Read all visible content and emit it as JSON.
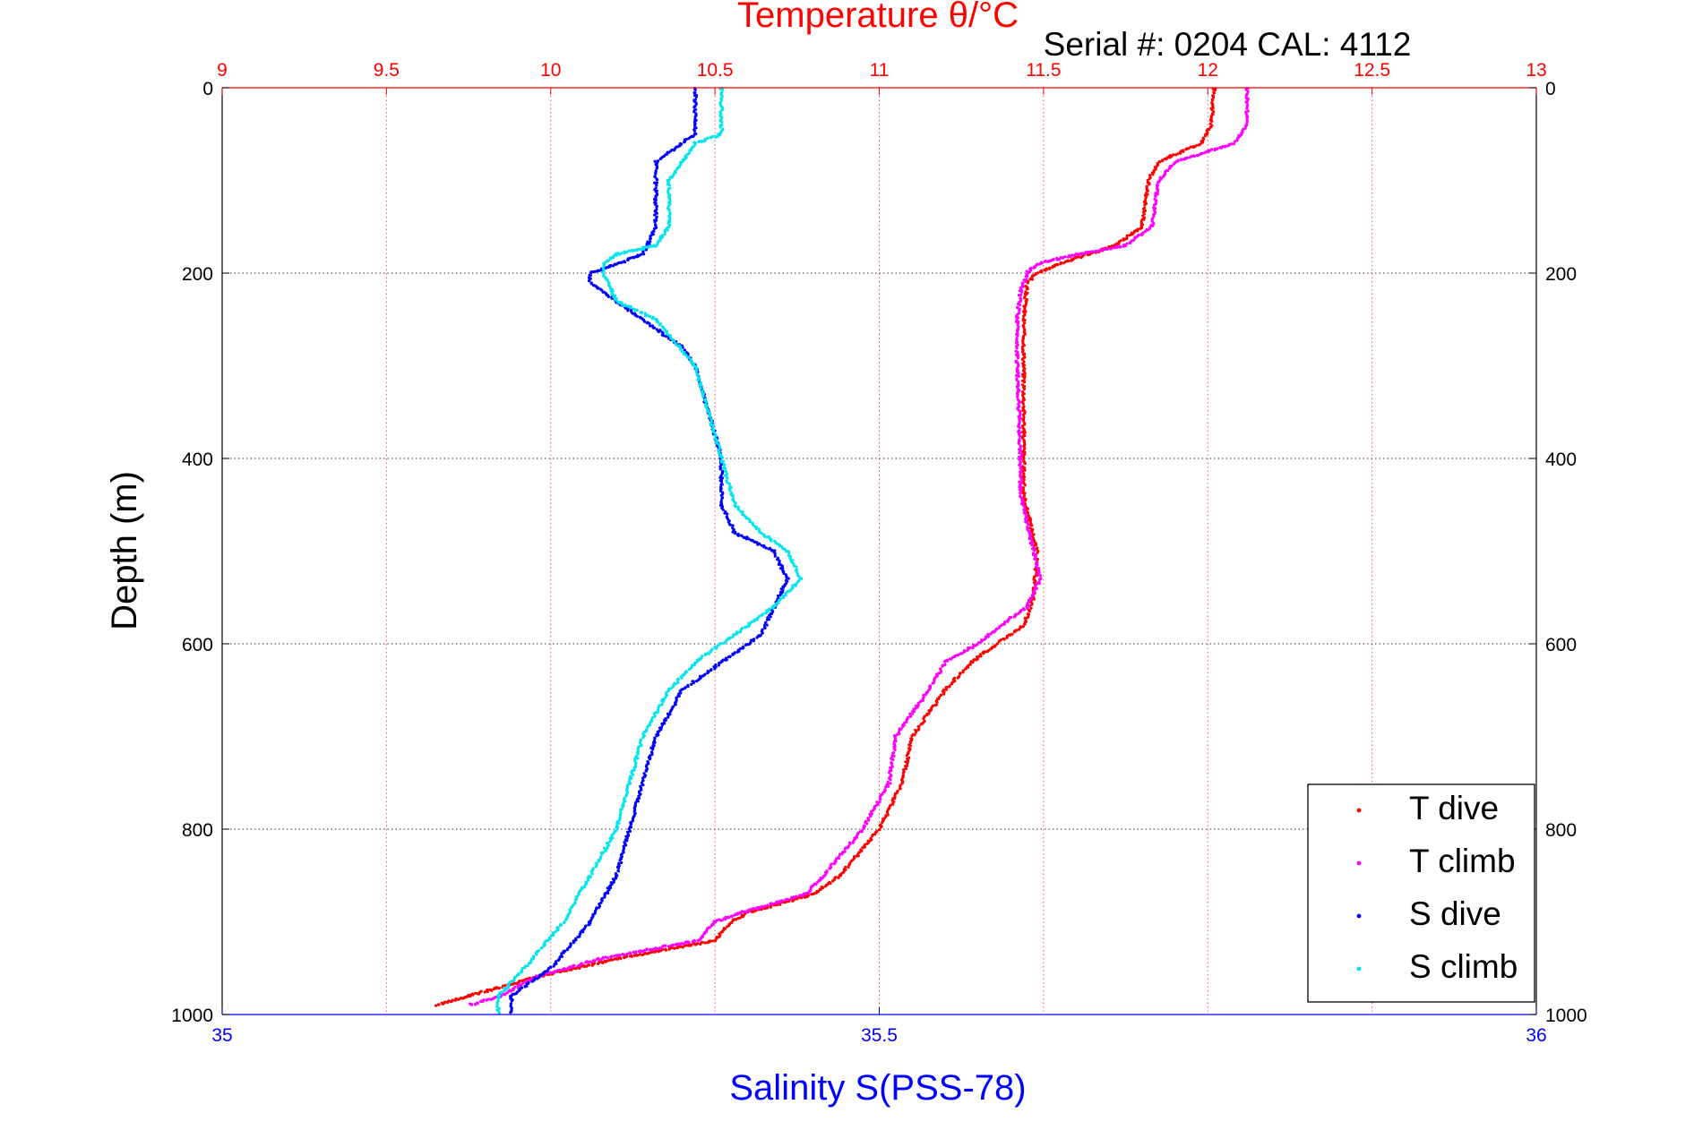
{
  "chart_data": {
    "type": "scatter",
    "title": "Temperature θ/°C",
    "subtitle": "Serial #: 0204  CAL: 4112",
    "xlabel": "Salinity S(PSS-78)",
    "ylabel": "Depth (m)",
    "x_top": {
      "label": "Temperature θ/°C",
      "range": [
        9,
        13
      ],
      "ticks": [
        "9",
        "9.5",
        "10",
        "10.5",
        "11",
        "11.5",
        "12",
        "12.5",
        "13"
      ],
      "color": "#ff0000"
    },
    "x_bottom": {
      "label": "Salinity S(PSS-78)",
      "range": [
        35,
        36
      ],
      "ticks": [
        "35",
        "35.5",
        "36"
      ],
      "color": "#0000ff"
    },
    "y": {
      "range": [
        0,
        1000
      ],
      "reversed": true,
      "ticks": [
        "0",
        "200",
        "400",
        "600",
        "800",
        "1000"
      ]
    },
    "grid": true,
    "legend": "bottom-right",
    "series": [
      {
        "name": "T dive",
        "axis": "top",
        "color": "#ff0000",
        "depth": [
          0,
          40,
          60,
          80,
          100,
          150,
          170,
          190,
          200,
          210,
          250,
          300,
          400,
          440,
          500,
          550,
          580,
          600,
          620,
          650,
          700,
          750,
          800,
          850,
          870,
          890,
          900,
          920,
          940,
          960,
          980,
          990
        ],
        "values": [
          12.02,
          12.01,
          11.98,
          11.85,
          11.82,
          11.8,
          11.72,
          11.55,
          11.48,
          11.45,
          11.44,
          11.44,
          11.44,
          11.44,
          11.48,
          11.47,
          11.44,
          11.36,
          11.28,
          11.2,
          11.1,
          11.07,
          11.0,
          10.88,
          10.8,
          10.6,
          10.55,
          10.5,
          10.2,
          9.95,
          9.75,
          9.65
        ]
      },
      {
        "name": "T climb",
        "axis": "top",
        "color": "#ff00ff",
        "depth": [
          0,
          40,
          60,
          80,
          100,
          150,
          170,
          180,
          190,
          200,
          220,
          250,
          300,
          400,
          440,
          500,
          530,
          560,
          580,
          600,
          620,
          650,
          700,
          750,
          800,
          850,
          870,
          890,
          900,
          920,
          940,
          960,
          980,
          990
        ],
        "values": [
          12.12,
          12.12,
          12.08,
          11.9,
          11.85,
          11.83,
          11.75,
          11.6,
          11.48,
          11.45,
          11.43,
          11.42,
          11.42,
          11.43,
          11.43,
          11.47,
          11.49,
          11.45,
          11.37,
          11.3,
          11.2,
          11.15,
          11.05,
          11.03,
          10.95,
          10.83,
          10.78,
          10.58,
          10.5,
          10.45,
          10.15,
          9.95,
          9.85,
          9.75
        ]
      },
      {
        "name": "S dive",
        "axis": "bottom",
        "color": "#0000ff",
        "depth": [
          0,
          50,
          60,
          80,
          100,
          150,
          180,
          200,
          210,
          230,
          250,
          280,
          300,
          350,
          400,
          450,
          480,
          500,
          530,
          560,
          590,
          620,
          650,
          700,
          750,
          800,
          850,
          900,
          950,
          980,
          1000
        ],
        "values": [
          35.36,
          35.36,
          35.35,
          35.33,
          35.33,
          35.33,
          35.32,
          35.28,
          35.28,
          35.3,
          35.32,
          35.35,
          35.36,
          35.37,
          35.38,
          35.38,
          35.39,
          35.42,
          35.43,
          35.42,
          35.41,
          35.38,
          35.35,
          35.33,
          35.32,
          35.31,
          35.3,
          35.28,
          35.25,
          35.22,
          35.22
        ]
      },
      {
        "name": "S climb",
        "axis": "bottom",
        "color": "#00e5ee",
        "depth": [
          0,
          50,
          60,
          80,
          100,
          150,
          170,
          180,
          190,
          200,
          230,
          250,
          300,
          350,
          400,
          450,
          480,
          500,
          530,
          560,
          590,
          620,
          650,
          700,
          750,
          800,
          850,
          900,
          950,
          980,
          1000
        ],
        "values": [
          35.38,
          35.38,
          35.36,
          35.35,
          35.34,
          35.34,
          35.33,
          35.3,
          35.29,
          35.29,
          35.3,
          35.33,
          35.36,
          35.37,
          35.38,
          35.39,
          35.41,
          35.43,
          35.44,
          35.42,
          35.39,
          35.36,
          35.34,
          35.32,
          35.31,
          35.3,
          35.28,
          35.26,
          35.23,
          35.21,
          35.21
        ]
      }
    ]
  }
}
